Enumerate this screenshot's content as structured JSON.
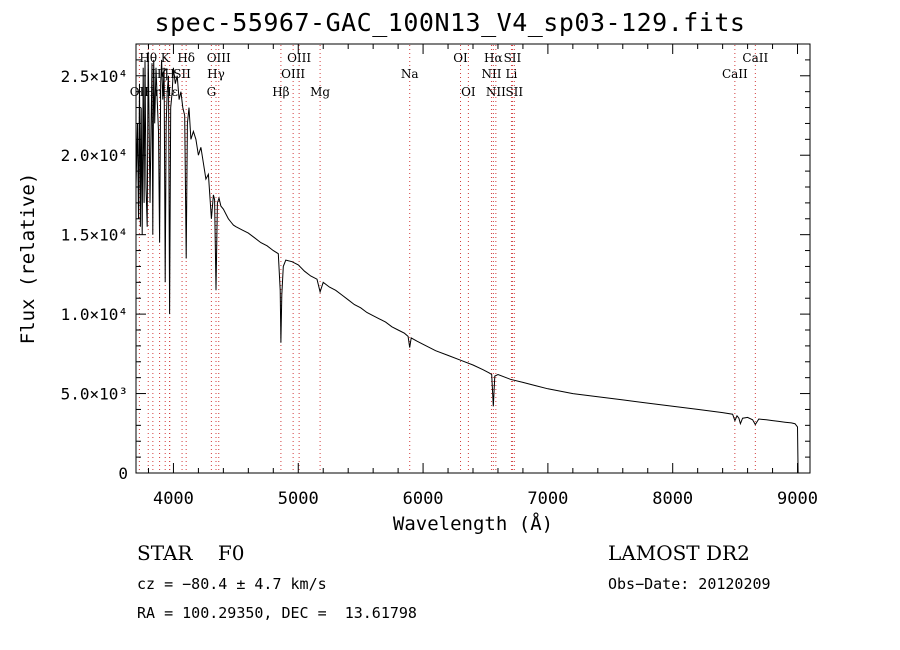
{
  "chart_data": {
    "type": "line",
    "title": "spec-55967-GAC_100N13_V4_sp03-129.fits",
    "xlabel": "Wavelength (Å)",
    "ylabel": "Flux (relative)",
    "xlim": [
      3700,
      9100
    ],
    "ylim": [
      0,
      27000
    ],
    "xticks": [
      {
        "value": 4000,
        "label": "4000"
      },
      {
        "value": 5000,
        "label": "5000"
      },
      {
        "value": 6000,
        "label": "6000"
      },
      {
        "value": 7000,
        "label": "7000"
      },
      {
        "value": 8000,
        "label": "8000"
      },
      {
        "value": 9000,
        "label": "9000"
      }
    ],
    "yticks": [
      {
        "value": 0,
        "label": "0"
      },
      {
        "value": 5000,
        "label": "5.0×10³"
      },
      {
        "value": 10000,
        "label": "1.0×10⁴"
      },
      {
        "value": 15000,
        "label": "1.5×10⁴"
      },
      {
        "value": 20000,
        "label": "2.0×10⁴"
      },
      {
        "value": 25000,
        "label": "2.5×10⁴"
      }
    ],
    "grid": false,
    "line_markers": [
      {
        "wavelength": 3727,
        "label": "OII",
        "row": 2
      },
      {
        "wavelength": 3798,
        "label": "Hθ",
        "row": 0
      },
      {
        "wavelength": 3835,
        "label": "Hη",
        "row": 2
      },
      {
        "wavelength": 3889,
        "label": "Hζ",
        "row": 1
      },
      {
        "wavelength": 3934,
        "label": "K",
        "row": 0
      },
      {
        "wavelength": 3969,
        "label": "H",
        "row": 1
      },
      {
        "wavelength": 3970,
        "label": "Hε",
        "row": 2
      },
      {
        "wavelength": 4069,
        "label": "SII",
        "row": 1
      },
      {
        "wavelength": 4102,
        "label": "Hδ",
        "row": 0
      },
      {
        "wavelength": 4304,
        "label": "G",
        "row": 2
      },
      {
        "wavelength": 4341,
        "label": "Hγ",
        "row": 1
      },
      {
        "wavelength": 4363,
        "label": "OIII",
        "row": 0
      },
      {
        "wavelength": 4861,
        "label": "Hβ",
        "row": 2
      },
      {
        "wavelength": 4959,
        "label": "OIII",
        "row": 1
      },
      {
        "wavelength": 5007,
        "label": "OIII",
        "row": 0
      },
      {
        "wavelength": 5175,
        "label": "Mg",
        "row": 2
      },
      {
        "wavelength": 5893,
        "label": "Na",
        "row": 1
      },
      {
        "wavelength": 6300,
        "label": "OI",
        "row": 0
      },
      {
        "wavelength": 6363,
        "label": "OI",
        "row": 2
      },
      {
        "wavelength": 6548,
        "label": "NII",
        "row": 1
      },
      {
        "wavelength": 6563,
        "label": "Hα",
        "row": 0
      },
      {
        "wavelength": 6583,
        "label": "NII",
        "row": 2
      },
      {
        "wavelength": 6708,
        "label": "Li",
        "row": 1
      },
      {
        "wavelength": 6716,
        "label": "SII",
        "row": 0
      },
      {
        "wavelength": 6731,
        "label": "SII",
        "row": 2
      },
      {
        "wavelength": 8498,
        "label": "CaII",
        "row": 1
      },
      {
        "wavelength": 8662,
        "label": "CaII",
        "row": 0
      }
    ],
    "series": [
      {
        "color": "#000000",
        "x": [
          3700,
          3712,
          3720,
          3728,
          3735,
          3742,
          3750,
          3758,
          3765,
          3772,
          3780,
          3790,
          3798,
          3805,
          3812,
          3820,
          3828,
          3835,
          3842,
          3850,
          3860,
          3870,
          3880,
          3889,
          3898,
          3905,
          3915,
          3925,
          3934,
          3942,
          3950,
          3960,
          3969,
          3978,
          3990,
          4000,
          4015,
          4030,
          4045,
          4060,
          4075,
          4090,
          4102,
          4112,
          4125,
          4140,
          4160,
          4180,
          4200,
          4220,
          4240,
          4260,
          4280,
          4304,
          4320,
          4330,
          4341,
          4352,
          4365,
          4380,
          4400,
          4420,
          4440,
          4460,
          4480,
          4500,
          4550,
          4600,
          4650,
          4700,
          4750,
          4800,
          4840,
          4855,
          4861,
          4868,
          4880,
          4900,
          4950,
          5000,
          5050,
          5100,
          5150,
          5175,
          5200,
          5250,
          5300,
          5350,
          5400,
          5450,
          5500,
          5550,
          5600,
          5650,
          5700,
          5750,
          5800,
          5850,
          5880,
          5893,
          5905,
          5950,
          6000,
          6100,
          6200,
          6300,
          6400,
          6480,
          6530,
          6550,
          6563,
          6575,
          6600,
          6700,
          6800,
          6900,
          7000,
          7200,
          7400,
          7600,
          7800,
          8000,
          8200,
          8400,
          8480,
          8498,
          8515,
          8530,
          8542,
          8560,
          8600,
          8640,
          8662,
          8690,
          8750,
          8800,
          8850,
          8900,
          8950,
          8980,
          9000,
          9005
        ],
        "y": [
          18000,
          22000,
          16000,
          24500,
          15500,
          23000,
          15000,
          25500,
          17000,
          26000,
          18000,
          15500,
          26500,
          22000,
          17000,
          21500,
          25800,
          15000,
          26000,
          22000,
          25500,
          23500,
          21500,
          14500,
          24500,
          26000,
          23500,
          25500,
          12000,
          22000,
          24000,
          25000,
          10000,
          23000,
          24000,
          25500,
          24500,
          25000,
          23500,
          24000,
          23000,
          22500,
          13500,
          22000,
          23000,
          21000,
          21500,
          21000,
          20000,
          20500,
          19500,
          18500,
          18800,
          16000,
          17500,
          17200,
          11500,
          17000,
          17300,
          16800,
          16600,
          16300,
          16000,
          15800,
          15600,
          15500,
          15300,
          15100,
          14800,
          14500,
          14300,
          14000,
          13800,
          11500,
          8200,
          11200,
          13000,
          13400,
          13300,
          13100,
          12700,
          12400,
          12200,
          11400,
          12000,
          11700,
          11500,
          11200,
          10900,
          10600,
          10400,
          10100,
          9900,
          9700,
          9500,
          9200,
          9000,
          8800,
          8600,
          7900,
          8500,
          8300,
          8100,
          7700,
          7400,
          7100,
          6800,
          6500,
          6300,
          6200,
          4200,
          6100,
          6200,
          5900,
          5700,
          5500,
          5300,
          5000,
          4800,
          4600,
          4400,
          4200,
          4000,
          3800,
          3700,
          3300,
          3600,
          3450,
          3100,
          3450,
          3500,
          3350,
          3050,
          3400,
          3350,
          3300,
          3250,
          3200,
          3150,
          3100,
          2900,
          0
        ]
      }
    ]
  },
  "info": {
    "object": "STAR    F0",
    "survey": "LAMOST DR2",
    "cz": "cz = −80.4 ± 4.7 km/s",
    "obs_date": "Obs−Date: 20120209",
    "coords": "RA = 100.29350, DEC =  13.61798"
  }
}
